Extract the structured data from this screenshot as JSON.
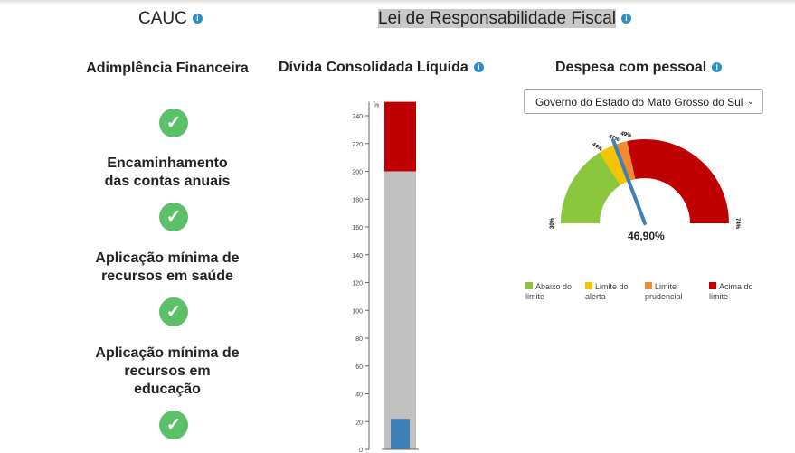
{
  "header": {
    "cauc_title": "CAUC",
    "lrf_title": "Lei de Responsabilidade Fiscal"
  },
  "cauc": {
    "items": [
      {
        "label": "Adimplência Financeira",
        "status": "ok"
      },
      {
        "label": "Encaminhamento das contas anuais",
        "status": "ok"
      },
      {
        "label": "Aplicação mínima de recursos em saúde",
        "status": "ok"
      },
      {
        "label": "Aplicação mínima de recursos em educação",
        "status": "ok"
      }
    ]
  },
  "divida": {
    "title": "Dívida Consolidada Líquida",
    "unit": "%",
    "ticks": [
      "0",
      "20",
      "40",
      "60",
      "80",
      "100",
      "120",
      "140",
      "160",
      "180",
      "200",
      "220",
      "240"
    ],
    "ymax": 250,
    "limit": 200,
    "value": 22,
    "colors": {
      "below": "#c0c0c0",
      "above": "#c00000",
      "value": "#3f7fb8"
    }
  },
  "pessoal": {
    "title": "Despesa com pessoal",
    "selected": "Governo do Estado do Mato Grosso do Sul",
    "min_label": "30%",
    "max_label": "74%",
    "band_labels": [
      "44%",
      "47%",
      "49%"
    ],
    "bands": [
      {
        "from": 30,
        "to": 44,
        "color": "#8cc63f"
      },
      {
        "from": 44,
        "to": 47,
        "color": "#f5c400"
      },
      {
        "from": 47,
        "to": 49,
        "color": "#f08c2e"
      },
      {
        "from": 49,
        "to": 74,
        "color": "#c00000"
      }
    ],
    "value": 46.9,
    "value_label": "46,90%",
    "legend": [
      {
        "label": "Abaixo do limite",
        "color": "#8cc63f"
      },
      {
        "label": "Limite do alerta",
        "color": "#f5c400"
      },
      {
        "label": "Limite prudencial",
        "color": "#f08c2e"
      },
      {
        "label": "Acima do limite",
        "color": "#c00000"
      }
    ]
  }
}
